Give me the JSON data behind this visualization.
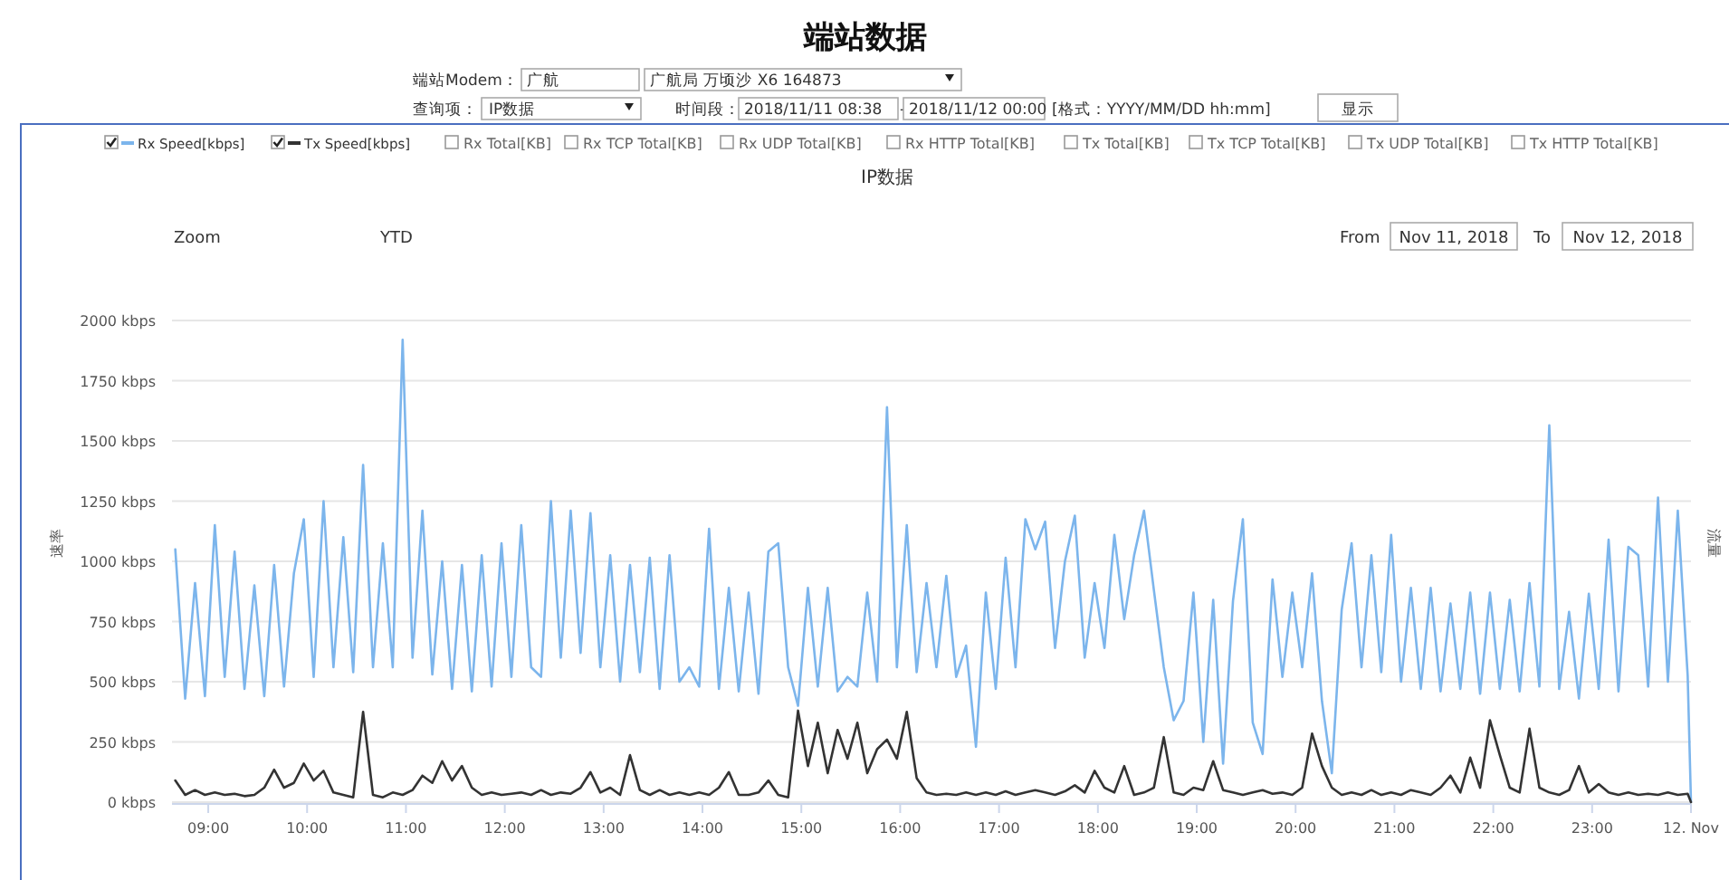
{
  "chart_data": {
    "type": "line",
    "title": "端站数据",
    "subtitle": "IP数据",
    "ylabel": "速率",
    "y2label": "流量",
    "annotations": [
      "端站Modem：",
      "广航",
      "广航局 万顷沙 X6 164873",
      "查询项：",
      "IP数据",
      "时间段：",
      "2018/11/11 08:38",
      "-",
      "2018/11/12 00:00",
      "[格式：YYYY/MM/DD hh:mm]",
      "显示",
      "Rx Total[KB]",
      "Rx TCP Total[KB]",
      "Rx UDP Total[KB]",
      "Rx HTTP Total[KB]",
      "Tx Total[KB]",
      "Tx TCP Total[KB]",
      "Tx UDP Total[KB]",
      "Tx HTTP Total[KB]",
      "Zoom",
      "YTD",
      "From",
      "Nov 11, 2018",
      "To",
      "Nov 12, 2018"
    ],
    "x": [
      "2018-11-11T08:40",
      "2018-11-11T08:46",
      "2018-11-11T08:52",
      "2018-11-11T08:58",
      "2018-11-11T09:04",
      "2018-11-11T09:10",
      "2018-11-11T09:16",
      "2018-11-11T09:22",
      "2018-11-11T09:28",
      "2018-11-11T09:34",
      "2018-11-11T09:40",
      "2018-11-11T09:46",
      "2018-11-11T09:52",
      "2018-11-11T09:58",
      "2018-11-11T10:04",
      "2018-11-11T10:10",
      "2018-11-11T10:16",
      "2018-11-11T10:22",
      "2018-11-11T10:28",
      "2018-11-11T10:34",
      "2018-11-11T10:40",
      "2018-11-11T10:46",
      "2018-11-11T10:52",
      "2018-11-11T10:58",
      "2018-11-11T11:04",
      "2018-11-11T11:10",
      "2018-11-11T11:16",
      "2018-11-11T11:22",
      "2018-11-11T11:28",
      "2018-11-11T11:34",
      "2018-11-11T11:40",
      "2018-11-11T11:46",
      "2018-11-11T11:52",
      "2018-11-11T11:58",
      "2018-11-11T12:04",
      "2018-11-11T12:10",
      "2018-11-11T12:16",
      "2018-11-11T12:22",
      "2018-11-11T12:28",
      "2018-11-11T12:34",
      "2018-11-11T12:40",
      "2018-11-11T12:46",
      "2018-11-11T12:52",
      "2018-11-11T12:58",
      "2018-11-11T13:04",
      "2018-11-11T13:10",
      "2018-11-11T13:16",
      "2018-11-11T13:22",
      "2018-11-11T13:28",
      "2018-11-11T13:34",
      "2018-11-11T13:40",
      "2018-11-11T13:46",
      "2018-11-11T13:52",
      "2018-11-11T13:58",
      "2018-11-11T14:04",
      "2018-11-11T14:10",
      "2018-11-11T14:16",
      "2018-11-11T14:22",
      "2018-11-11T14:28",
      "2018-11-11T14:34",
      "2018-11-11T14:40",
      "2018-11-11T14:46",
      "2018-11-11T14:52",
      "2018-11-11T14:58",
      "2018-11-11T15:04",
      "2018-11-11T15:10",
      "2018-11-11T15:16",
      "2018-11-11T15:22",
      "2018-11-11T15:28",
      "2018-11-11T15:34",
      "2018-11-11T15:40",
      "2018-11-11T15:46",
      "2018-11-11T15:52",
      "2018-11-11T15:58",
      "2018-11-11T16:04",
      "2018-11-11T16:10",
      "2018-11-11T16:16",
      "2018-11-11T16:22",
      "2018-11-11T16:28",
      "2018-11-11T16:34",
      "2018-11-11T16:40",
      "2018-11-11T16:46",
      "2018-11-11T16:52",
      "2018-11-11T16:58",
      "2018-11-11T17:04",
      "2018-11-11T17:10",
      "2018-11-11T17:16",
      "2018-11-11T17:22",
      "2018-11-11T17:28",
      "2018-11-11T17:34",
      "2018-11-11T17:40",
      "2018-11-11T17:46",
      "2018-11-11T17:52",
      "2018-11-11T17:58",
      "2018-11-11T18:04",
      "2018-11-11T18:10",
      "2018-11-11T18:16",
      "2018-11-11T18:22",
      "2018-11-11T18:28",
      "2018-11-11T18:34",
      "2018-11-11T18:40",
      "2018-11-11T18:46",
      "2018-11-11T18:52",
      "2018-11-11T18:58",
      "2018-11-11T19:04",
      "2018-11-11T19:10",
      "2018-11-11T19:16",
      "2018-11-11T19:22",
      "2018-11-11T19:28",
      "2018-11-11T19:34",
      "2018-11-11T19:40",
      "2018-11-11T19:46",
      "2018-11-11T19:52",
      "2018-11-11T19:58",
      "2018-11-11T20:04",
      "2018-11-11T20:10",
      "2018-11-11T20:16",
      "2018-11-11T20:22",
      "2018-11-11T20:28",
      "2018-11-11T20:34",
      "2018-11-11T20:40",
      "2018-11-11T20:46",
      "2018-11-11T20:52",
      "2018-11-11T20:58",
      "2018-11-11T21:04",
      "2018-11-11T21:10",
      "2018-11-11T21:16",
      "2018-11-11T21:22",
      "2018-11-11T21:28",
      "2018-11-11T21:34",
      "2018-11-11T21:40",
      "2018-11-11T21:46",
      "2018-11-11T21:52",
      "2018-11-11T21:58",
      "2018-11-11T22:04",
      "2018-11-11T22:10",
      "2018-11-11T22:16",
      "2018-11-11T22:22",
      "2018-11-11T22:28",
      "2018-11-11T22:34",
      "2018-11-11T22:40",
      "2018-11-11T22:46",
      "2018-11-11T22:52",
      "2018-11-11T22:58",
      "2018-11-11T23:04",
      "2018-11-11T23:10",
      "2018-11-11T23:16",
      "2018-11-11T23:22",
      "2018-11-11T23:28",
      "2018-11-11T23:34",
      "2018-11-11T23:40",
      "2018-11-11T23:46",
      "2018-11-11T23:52",
      "2018-11-11T23:58",
      "2018-11-12T00:00"
    ],
    "series": [
      {
        "name": "Rx Speed[kbps]",
        "color": "#7cb5ec",
        "values": [
          1050,
          430,
          910,
          440,
          1150,
          520,
          1040,
          470,
          900,
          440,
          985,
          480,
          950,
          1175,
          520,
          1250,
          560,
          1100,
          540,
          1400,
          560,
          1075,
          560,
          1920,
          600,
          1210,
          530,
          1000,
          470,
          985,
          460,
          1025,
          480,
          1075,
          520,
          1150,
          560,
          520,
          1250,
          600,
          1210,
          620,
          1200,
          560,
          1025,
          500,
          985,
          540,
          1015,
          470,
          1025,
          500,
          560,
          480,
          1135,
          470,
          890,
          460,
          870,
          450,
          1040,
          1075,
          560,
          400,
          890,
          480,
          890,
          460,
          520,
          480,
          870,
          500,
          1640,
          560,
          1150,
          540,
          910,
          560,
          940,
          520,
          650,
          230,
          870,
          470,
          1015,
          560,
          1175,
          1050,
          1165,
          640,
          1000,
          1190,
          600,
          910,
          640,
          1110,
          760,
          1025,
          1210,
          880,
          560,
          340,
          420,
          870,
          250,
          840,
          160,
          835,
          1175,
          330,
          200,
          925,
          520,
          870,
          560,
          950,
          420,
          120,
          800,
          1075,
          560,
          1025,
          540,
          1110,
          500,
          890,
          470,
          890,
          460,
          825,
          470,
          870,
          450,
          870,
          470,
          840,
          460,
          910,
          480,
          1565,
          470,
          790,
          430,
          865,
          470,
          1090,
          460,
          1060,
          1025,
          480,
          1265,
          500,
          1210,
          525,
          0
        ]
      },
      {
        "name": "Tx Speed[kbps]",
        "color": "#333333",
        "values": [
          90,
          30,
          50,
          30,
          40,
          30,
          35,
          25,
          30,
          60,
          135,
          60,
          80,
          160,
          90,
          130,
          40,
          30,
          20,
          375,
          30,
          20,
          40,
          30,
          50,
          110,
          80,
          170,
          90,
          150,
          60,
          30,
          40,
          30,
          35,
          40,
          30,
          50,
          30,
          40,
          35,
          60,
          125,
          40,
          60,
          30,
          195,
          50,
          30,
          50,
          30,
          40,
          30,
          40,
          30,
          60,
          125,
          30,
          30,
          40,
          90,
          30,
          20,
          380,
          150,
          330,
          120,
          300,
          180,
          330,
          120,
          220,
          260,
          180,
          375,
          100,
          40,
          30,
          35,
          30,
          40,
          30,
          40,
          30,
          45,
          30,
          40,
          50,
          40,
          30,
          45,
          70,
          40,
          130,
          60,
          40,
          150,
          30,
          40,
          60,
          270,
          40,
          30,
          60,
          50,
          170,
          50,
          40,
          30,
          40,
          50,
          35,
          40,
          30,
          60,
          285,
          150,
          60,
          30,
          40,
          30,
          50,
          30,
          40,
          30,
          50,
          40,
          30,
          60,
          110,
          40,
          185,
          60,
          340,
          195,
          60,
          40,
          305,
          60,
          40,
          30,
          50,
          150,
          40,
          75,
          40,
          30,
          40,
          30,
          35,
          30,
          40,
          30,
          35,
          0
        ]
      }
    ],
    "xlim": [
      "2018-11-11T08:38",
      "2018-11-12T00:00"
    ],
    "xticks": [
      {
        "value": "2018-11-11T09:00",
        "label": "09:00"
      },
      {
        "value": "2018-11-11T10:00",
        "label": "10:00"
      },
      {
        "value": "2018-11-11T11:00",
        "label": "11:00"
      },
      {
        "value": "2018-11-11T12:00",
        "label": "12:00"
      },
      {
        "value": "2018-11-11T13:00",
        "label": "13:00"
      },
      {
        "value": "2018-11-11T14:00",
        "label": "14:00"
      },
      {
        "value": "2018-11-11T15:00",
        "label": "15:00"
      },
      {
        "value": "2018-11-11T16:00",
        "label": "16:00"
      },
      {
        "value": "2018-11-11T17:00",
        "label": "17:00"
      },
      {
        "value": "2018-11-11T18:00",
        "label": "18:00"
      },
      {
        "value": "2018-11-11T19:00",
        "label": "19:00"
      },
      {
        "value": "2018-11-11T20:00",
        "label": "20:00"
      },
      {
        "value": "2018-11-11T21:00",
        "label": "21:00"
      },
      {
        "value": "2018-11-11T22:00",
        "label": "22:00"
      },
      {
        "value": "2018-11-11T23:00",
        "label": "23:00"
      },
      {
        "value": "2018-11-12T00:00",
        "label": "12. Nov"
      }
    ],
    "ylim": [
      0,
      2000
    ],
    "yticks": [
      {
        "value": 0,
        "label": "0 kbps"
      },
      {
        "value": 250,
        "label": "250 kbps"
      },
      {
        "value": 500,
        "label": "500 kbps"
      },
      {
        "value": 750,
        "label": "750 kbps"
      },
      {
        "value": 1000,
        "label": "1000 kbps"
      },
      {
        "value": 1250,
        "label": "1250 kbps"
      },
      {
        "value": 1500,
        "label": "1500 kbps"
      },
      {
        "value": 1750,
        "label": "1750 kbps"
      },
      {
        "value": 2000,
        "label": "2000 kbps"
      }
    ],
    "grid": "y",
    "legend": "top"
  }
}
